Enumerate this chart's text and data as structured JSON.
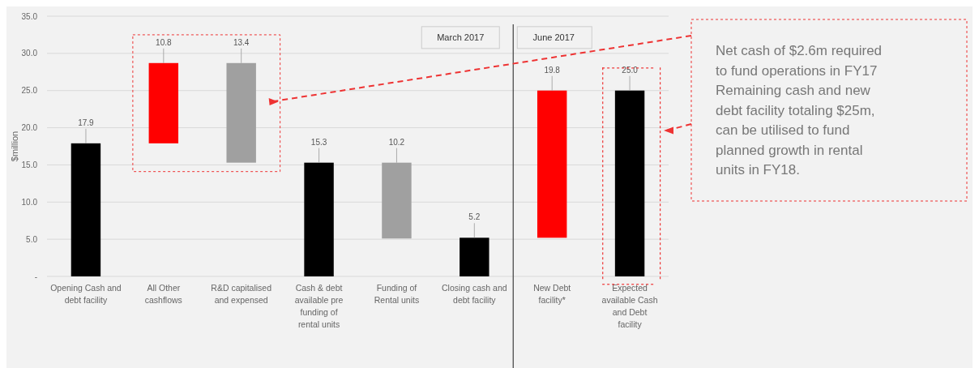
{
  "chart_data": {
    "type": "bar",
    "ylabel": "$million",
    "categories": [
      "Opening Cash and debt facility",
      "All Other cashflows",
      "R&D capitalised and expensed",
      "Cash & debt available pre funding of rental units",
      "Funding of Rental units",
      "Closing cash and debt facility",
      "New Debt facility*",
      "Expected available Cash and Debt facility"
    ],
    "values": [
      17.9,
      10.8,
      13.4,
      15.3,
      10.2,
      5.2,
      19.8,
      25.0
    ],
    "base": [
      0,
      17.9,
      15.3,
      0,
      5.1,
      0,
      5.2,
      0
    ],
    "colors": [
      "#000000",
      "#ff0000",
      "#a0a0a0",
      "#000000",
      "#a0a0a0",
      "#000000",
      "#ff0000",
      "#000000"
    ],
    "value_labels": [
      "17.9",
      "10.8",
      "13.4",
      "15.3",
      "10.2",
      "5.2",
      "19.8",
      "25.0"
    ],
    "ylim": [
      0,
      35
    ],
    "yticks": [
      {
        "value": 0,
        "label": "-"
      },
      {
        "value": 5,
        "label": "5.0"
      },
      {
        "value": 10,
        "label": "10.0"
      },
      {
        "value": 15,
        "label": "15.0"
      },
      {
        "value": 20,
        "label": "20.0"
      },
      {
        "value": 25,
        "label": "25.0"
      },
      {
        "value": 30,
        "label": "30.0"
      },
      {
        "value": 35,
        "label": "35.0"
      }
    ],
    "grid": "y",
    "annotations": [
      "March 2017",
      "June 2017",
      "Net cash of $2.6m required\nto fund operations in FY17\nRemaining cash and new\ndebt facility totaling $25m,\ncan be utilised to fund\nplanned growth in rental\nunits in FY18."
    ]
  }
}
